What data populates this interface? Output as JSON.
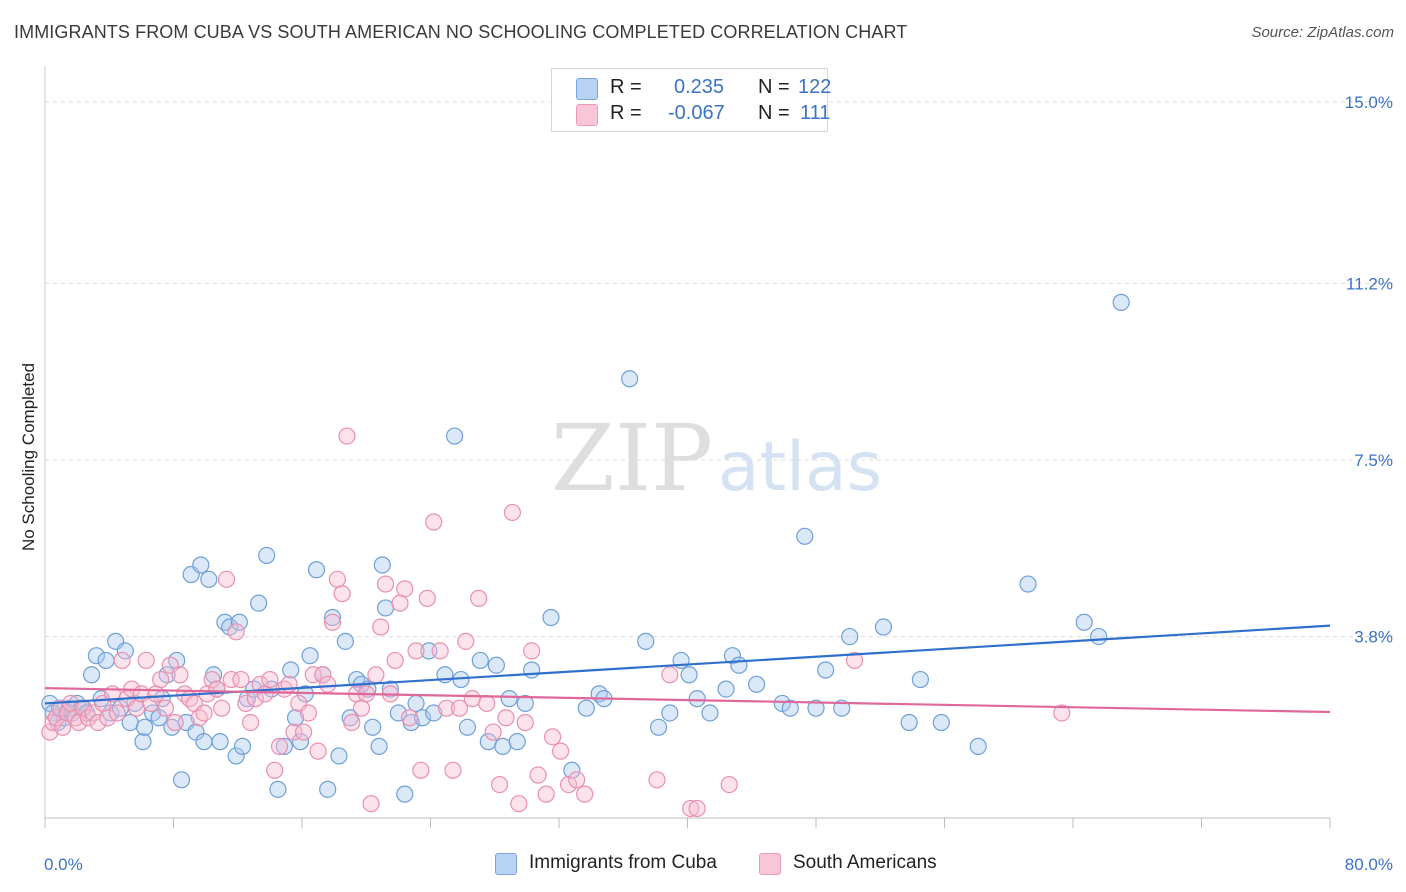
{
  "title": "IMMIGRANTS FROM CUBA VS SOUTH AMERICAN NO SCHOOLING COMPLETED CORRELATION CHART",
  "source": "Source: ZipAtlas.com",
  "watermark": {
    "zip": "ZIP",
    "atlas": "atlas"
  },
  "legend": {
    "r_label": "R =",
    "n_label": "N =",
    "rows": [
      {
        "r": "0.235",
        "n": "122"
      },
      {
        "r": "-0.067",
        "n": "111"
      }
    ]
  },
  "chart_data": {
    "type": "scatter",
    "title": "IMMIGRANTS FROM CUBA VS SOUTH AMERICAN NO SCHOOLING COMPLETED CORRELATION CHART",
    "xlabel": "",
    "ylabel": "No Schooling Completed",
    "xlim": [
      0,
      80
    ],
    "ylim": [
      0,
      15.5
    ],
    "x_tick_labels": [
      "0.0%",
      "80.0%"
    ],
    "y_ticks": [
      3.8,
      7.5,
      11.2,
      15.0
    ],
    "y_tick_labels": [
      "3.8%",
      "7.5%",
      "11.2%",
      "15.0%"
    ],
    "grid": true,
    "legend_position": "top-center",
    "series": [
      {
        "name": "Immigrants from Cuba",
        "color": "#a9c8ee",
        "edge": "#6e9fd9",
        "trend_color": "#2f6fcd",
        "trend": {
          "x": [
            0,
            80
          ],
          "y": [
            2.4,
            4.03
          ]
        },
        "points": [
          [
            0.3,
            2.4
          ],
          [
            0.5,
            2.2
          ],
          [
            0.8,
            2.0
          ],
          [
            1.0,
            2.3
          ],
          [
            1.2,
            2.1
          ],
          [
            1.5,
            2.3
          ],
          [
            1.7,
            2.2
          ],
          [
            2.0,
            2.4
          ],
          [
            2.3,
            2.3
          ],
          [
            2.6,
            2.2
          ],
          [
            2.9,
            3.0
          ],
          [
            3.2,
            3.4
          ],
          [
            3.5,
            2.5
          ],
          [
            3.8,
            3.3
          ],
          [
            4.1,
            2.2
          ],
          [
            4.4,
            3.7
          ],
          [
            4.7,
            2.3
          ],
          [
            5.0,
            3.5
          ],
          [
            5.3,
            2.0
          ],
          [
            5.6,
            2.4
          ],
          [
            6.1,
            1.6
          ],
          [
            6.2,
            1.9
          ],
          [
            6.7,
            2.2
          ],
          [
            7.1,
            2.1
          ],
          [
            7.3,
            2.5
          ],
          [
            7.6,
            3.0
          ],
          [
            7.9,
            1.9
          ],
          [
            8.2,
            3.3
          ],
          [
            8.5,
            0.8
          ],
          [
            8.8,
            2.0
          ],
          [
            9.1,
            5.1
          ],
          [
            9.4,
            1.8
          ],
          [
            9.7,
            5.3
          ],
          [
            9.9,
            1.6
          ],
          [
            10.2,
            5.0
          ],
          [
            10.5,
            3.0
          ],
          [
            10.7,
            2.7
          ],
          [
            10.9,
            1.6
          ],
          [
            11.2,
            4.1
          ],
          [
            11.5,
            4.0
          ],
          [
            11.9,
            1.3
          ],
          [
            12.1,
            4.1
          ],
          [
            12.3,
            1.5
          ],
          [
            12.6,
            2.5
          ],
          [
            13.0,
            2.7
          ],
          [
            13.3,
            4.5
          ],
          [
            13.8,
            5.5
          ],
          [
            14.1,
            2.7
          ],
          [
            14.5,
            0.6
          ],
          [
            14.9,
            1.5
          ],
          [
            15.3,
            3.1
          ],
          [
            15.6,
            2.1
          ],
          [
            15.9,
            1.6
          ],
          [
            16.2,
            2.6
          ],
          [
            16.5,
            3.4
          ],
          [
            16.9,
            5.2
          ],
          [
            17.3,
            3.0
          ],
          [
            17.6,
            0.6
          ],
          [
            17.9,
            4.2
          ],
          [
            18.3,
            1.3
          ],
          [
            18.7,
            3.7
          ],
          [
            19.0,
            2.1
          ],
          [
            19.4,
            2.9
          ],
          [
            19.7,
            2.8
          ],
          [
            20.1,
            2.7
          ],
          [
            20.4,
            1.9
          ],
          [
            20.8,
            1.5
          ],
          [
            21.0,
            5.3
          ],
          [
            21.2,
            4.4
          ],
          [
            21.5,
            2.7
          ],
          [
            22.0,
            2.2
          ],
          [
            22.4,
            0.5
          ],
          [
            22.8,
            2.0
          ],
          [
            23.1,
            2.4
          ],
          [
            23.5,
            2.1
          ],
          [
            23.9,
            3.5
          ],
          [
            24.2,
            2.2
          ],
          [
            24.9,
            3.0
          ],
          [
            25.5,
            8.0
          ],
          [
            25.9,
            2.9
          ],
          [
            26.3,
            1.9
          ],
          [
            27.1,
            3.3
          ],
          [
            27.6,
            1.6
          ],
          [
            28.1,
            3.2
          ],
          [
            28.5,
            1.5
          ],
          [
            28.9,
            2.5
          ],
          [
            29.4,
            1.6
          ],
          [
            29.9,
            2.4
          ],
          [
            30.3,
            3.1
          ],
          [
            31.5,
            4.2
          ],
          [
            32.8,
            1.0
          ],
          [
            33.7,
            2.3
          ],
          [
            34.5,
            2.6
          ],
          [
            34.8,
            2.5
          ],
          [
            36.4,
            9.2
          ],
          [
            37.4,
            3.7
          ],
          [
            38.2,
            1.9
          ],
          [
            38.9,
            2.2
          ],
          [
            39.6,
            3.3
          ],
          [
            40.1,
            3.0
          ],
          [
            40.6,
            2.5
          ],
          [
            41.4,
            2.2
          ],
          [
            42.4,
            2.7
          ],
          [
            42.8,
            3.4
          ],
          [
            43.2,
            3.2
          ],
          [
            44.3,
            2.8
          ],
          [
            45.9,
            2.4
          ],
          [
            46.4,
            2.3
          ],
          [
            47.3,
            5.9
          ],
          [
            48.0,
            2.3
          ],
          [
            48.6,
            3.1
          ],
          [
            49.6,
            2.3
          ],
          [
            50.1,
            3.8
          ],
          [
            52.2,
            4.0
          ],
          [
            53.8,
            2.0
          ],
          [
            54.5,
            2.9
          ],
          [
            55.8,
            2.0
          ],
          [
            58.1,
            1.5
          ],
          [
            61.2,
            4.9
          ],
          [
            64.7,
            4.1
          ],
          [
            65.6,
            3.8
          ],
          [
            67.0,
            10.8
          ]
        ]
      },
      {
        "name": "South Americans",
        "color": "#f7bcd0",
        "edge": "#e98fb0",
        "trend_color": "#e0679a",
        "trend": {
          "x": [
            0,
            80
          ],
          "y": [
            2.72,
            2.22
          ]
        },
        "points": [
          [
            0.3,
            1.8
          ],
          [
            0.5,
            2.0
          ],
          [
            0.7,
            2.1
          ],
          [
            0.9,
            2.3
          ],
          [
            1.1,
            1.9
          ],
          [
            1.4,
            2.2
          ],
          [
            1.6,
            2.4
          ],
          [
            1.9,
            2.1
          ],
          [
            2.1,
            2.0
          ],
          [
            2.4,
            2.3
          ],
          [
            2.7,
            2.1
          ],
          [
            3.0,
            2.2
          ],
          [
            3.3,
            2.0
          ],
          [
            3.6,
            2.4
          ],
          [
            3.9,
            2.1
          ],
          [
            4.2,
            2.6
          ],
          [
            4.5,
            2.2
          ],
          [
            4.8,
            3.3
          ],
          [
            5.1,
            2.5
          ],
          [
            5.4,
            2.7
          ],
          [
            5.7,
            2.3
          ],
          [
            6.0,
            2.6
          ],
          [
            6.3,
            3.3
          ],
          [
            6.6,
            2.4
          ],
          [
            6.9,
            2.6
          ],
          [
            7.2,
            2.9
          ],
          [
            7.5,
            2.3
          ],
          [
            7.8,
            3.2
          ],
          [
            8.1,
            2.0
          ],
          [
            8.4,
            3.0
          ],
          [
            8.7,
            2.6
          ],
          [
            9.0,
            2.5
          ],
          [
            9.3,
            2.4
          ],
          [
            9.6,
            2.1
          ],
          [
            9.9,
            2.2
          ],
          [
            10.1,
            2.6
          ],
          [
            10.4,
            2.9
          ],
          [
            10.7,
            2.7
          ],
          [
            11.0,
            2.3
          ],
          [
            11.3,
            5.0
          ],
          [
            11.6,
            2.9
          ],
          [
            11.9,
            3.9
          ],
          [
            12.2,
            2.9
          ],
          [
            12.5,
            2.4
          ],
          [
            12.8,
            2.0
          ],
          [
            13.1,
            2.5
          ],
          [
            13.4,
            2.8
          ],
          [
            13.7,
            2.6
          ],
          [
            14.0,
            2.9
          ],
          [
            14.3,
            1.0
          ],
          [
            14.6,
            1.5
          ],
          [
            14.9,
            2.7
          ],
          [
            15.2,
            2.8
          ],
          [
            15.5,
            1.8
          ],
          [
            15.8,
            2.4
          ],
          [
            16.1,
            1.8
          ],
          [
            16.4,
            2.2
          ],
          [
            16.7,
            3.0
          ],
          [
            17.0,
            1.4
          ],
          [
            17.3,
            3.0
          ],
          [
            17.6,
            2.8
          ],
          [
            17.9,
            4.1
          ],
          [
            18.2,
            5.0
          ],
          [
            18.5,
            4.7
          ],
          [
            18.8,
            8.0
          ],
          [
            19.1,
            2.0
          ],
          [
            19.4,
            2.6
          ],
          [
            19.7,
            2.3
          ],
          [
            20.0,
            2.6
          ],
          [
            20.3,
            0.3
          ],
          [
            20.6,
            3.0
          ],
          [
            20.9,
            4.0
          ],
          [
            21.2,
            4.9
          ],
          [
            21.5,
            2.6
          ],
          [
            21.8,
            3.3
          ],
          [
            22.1,
            4.5
          ],
          [
            22.4,
            4.8
          ],
          [
            22.7,
            2.1
          ],
          [
            23.1,
            3.5
          ],
          [
            23.4,
            1.0
          ],
          [
            23.8,
            4.6
          ],
          [
            24.2,
            6.2
          ],
          [
            24.6,
            3.5
          ],
          [
            25.0,
            2.3
          ],
          [
            25.4,
            1.0
          ],
          [
            25.8,
            2.3
          ],
          [
            26.2,
            3.7
          ],
          [
            26.6,
            2.5
          ],
          [
            27.0,
            4.6
          ],
          [
            27.5,
            2.4
          ],
          [
            27.9,
            1.8
          ],
          [
            28.3,
            0.7
          ],
          [
            28.7,
            2.1
          ],
          [
            29.1,
            6.4
          ],
          [
            29.5,
            0.3
          ],
          [
            29.9,
            2.0
          ],
          [
            30.3,
            3.5
          ],
          [
            30.7,
            0.9
          ],
          [
            31.2,
            0.5
          ],
          [
            31.6,
            1.7
          ],
          [
            32.1,
            1.4
          ],
          [
            32.6,
            0.7
          ],
          [
            33.1,
            0.8
          ],
          [
            33.6,
            0.5
          ],
          [
            38.1,
            0.8
          ],
          [
            38.9,
            3.0
          ],
          [
            40.2,
            0.2
          ],
          [
            40.6,
            0.2
          ],
          [
            42.6,
            0.7
          ],
          [
            50.4,
            3.3
          ],
          [
            63.3,
            2.2
          ]
        ]
      }
    ]
  }
}
